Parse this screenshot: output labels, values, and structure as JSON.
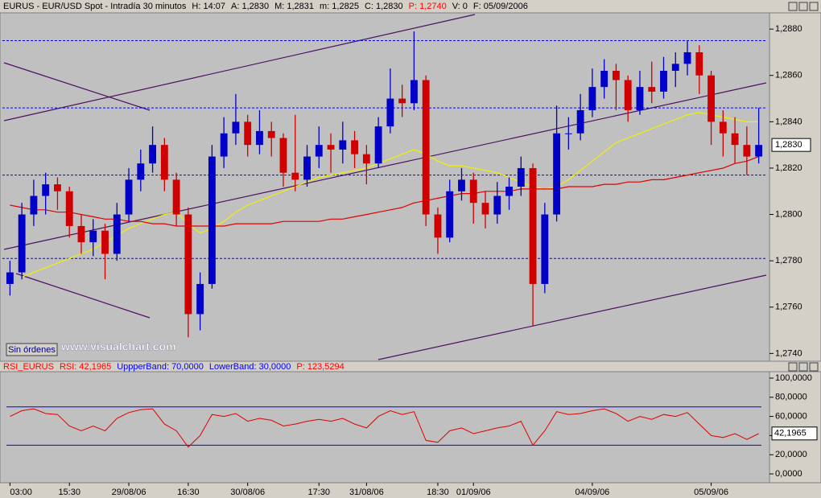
{
  "chart_data": [
    {
      "type": "candlestick",
      "header": [
        {
          "text": "EURUS - EUR/USD Spot - Intradía 30 minutos",
          "color": "#000000"
        },
        {
          "text": "H: 14:07",
          "color": "#000000"
        },
        {
          "text": "A: 1,2830",
          "color": "#000000"
        },
        {
          "text": "M: 1,2831",
          "color": "#000000"
        },
        {
          "text": "m: 1,2825",
          "color": "#000000"
        },
        {
          "text": "C: 1,2830",
          "color": "#000000"
        },
        {
          "text": "P: 1,2740",
          "color": "#ff0000"
        },
        {
          "text": "V: 0",
          "color": "#000000"
        },
        {
          "text": "F: 05/09/2006",
          "color": "#000000"
        }
      ],
      "button": "Sin órdenes",
      "watermark": "www.visualchart.com",
      "categories": [
        "03:00",
        null,
        null,
        null,
        null,
        "15:30",
        null,
        null,
        null,
        null,
        "29/08/06",
        null,
        null,
        null,
        null,
        "16:30",
        null,
        null,
        null,
        null,
        "30/08/06",
        null,
        null,
        null,
        null,
        null,
        "17:30",
        null,
        null,
        null,
        "31/08/06",
        null,
        null,
        null,
        null,
        null,
        "18:30",
        null,
        null,
        "01/09/06",
        null,
        null,
        null,
        null,
        null,
        null,
        null,
        null,
        null,
        "04/09/06",
        null,
        null,
        null,
        null,
        null,
        null,
        null,
        null,
        null,
        "05/09/06",
        null,
        null,
        null,
        null
      ],
      "open": [
        1.277,
        1.2775,
        1.28,
        1.2808,
        1.2813,
        1.281,
        1.2795,
        1.2788,
        1.2793,
        1.2783,
        1.28,
        1.2815,
        1.2822,
        1.283,
        1.2815,
        1.28,
        1.2757,
        1.277,
        1.2825,
        1.2835,
        1.284,
        1.283,
        1.2836,
        1.2833,
        1.2818,
        1.2815,
        1.2825,
        1.283,
        1.2828,
        1.2832,
        1.2826,
        1.2822,
        1.2838,
        1.285,
        1.2848,
        1.2858,
        1.28,
        1.279,
        1.281,
        1.2815,
        1.2805,
        1.28,
        1.2808,
        1.2812,
        1.282,
        1.277,
        1.28,
        1.2835,
        1.2835,
        1.2845,
        1.2855,
        1.2862,
        1.2858,
        1.2845,
        1.2855,
        1.2853,
        1.2862,
        1.2865,
        1.287,
        1.286,
        1.284,
        1.2835,
        1.283,
        1.2825
      ],
      "high": [
        1.278,
        1.2805,
        1.2815,
        1.2818,
        1.2816,
        1.2812,
        1.28,
        1.2798,
        1.2796,
        1.2805,
        1.282,
        1.2828,
        1.2838,
        1.2833,
        1.2818,
        1.2803,
        1.2775,
        1.283,
        1.2842,
        1.2852,
        1.2843,
        1.2845,
        1.284,
        1.2835,
        1.2843,
        1.283,
        1.2838,
        1.2835,
        1.284,
        1.2836,
        1.283,
        1.2842,
        1.2863,
        1.2856,
        1.2879,
        1.286,
        1.2803,
        1.2815,
        1.282,
        1.2818,
        1.281,
        1.2814,
        1.2816,
        1.2825,
        1.2822,
        1.2805,
        1.2847,
        1.2842,
        1.2852,
        1.2863,
        1.2867,
        1.2865,
        1.286,
        1.2862,
        1.2866,
        1.2868,
        1.287,
        1.2875,
        1.2873,
        1.2862,
        1.2845,
        1.2842,
        1.2838,
        1.2846
      ],
      "low": [
        1.2765,
        1.2772,
        1.2795,
        1.28,
        1.2802,
        1.279,
        1.2783,
        1.2782,
        1.2772,
        1.278,
        1.2797,
        1.281,
        1.2818,
        1.281,
        1.2795,
        1.2747,
        1.275,
        1.2768,
        1.282,
        1.283,
        1.2825,
        1.2826,
        1.2825,
        1.2812,
        1.281,
        1.2812,
        1.282,
        1.2818,
        1.2822,
        1.282,
        1.2813,
        1.282,
        1.2835,
        1.2842,
        1.2845,
        1.2795,
        1.2783,
        1.2788,
        1.2806,
        1.2796,
        1.2794,
        1.2796,
        1.2802,
        1.2808,
        1.2752,
        1.2766,
        1.2797,
        1.2828,
        1.2832,
        1.2842,
        1.285,
        1.2845,
        1.284,
        1.2843,
        1.2848,
        1.285,
        1.2855,
        1.286,
        1.2852,
        1.283,
        1.2825,
        1.2822,
        1.2817,
        1.2822
      ],
      "close": [
        1.2775,
        1.28,
        1.2808,
        1.2813,
        1.281,
        1.2795,
        1.2788,
        1.2793,
        1.2783,
        1.28,
        1.2815,
        1.2822,
        1.283,
        1.2815,
        1.28,
        1.2757,
        1.277,
        1.2825,
        1.2835,
        1.284,
        1.283,
        1.2836,
        1.2833,
        1.2818,
        1.2815,
        1.2825,
        1.283,
        1.2828,
        1.2832,
        1.2826,
        1.2822,
        1.2838,
        1.285,
        1.2848,
        1.2858,
        1.28,
        1.279,
        1.281,
        1.2815,
        1.2805,
        1.28,
        1.2808,
        1.2812,
        1.282,
        1.277,
        1.28,
        1.2835,
        1.2835,
        1.2845,
        1.2855,
        1.2862,
        1.2858,
        1.2845,
        1.2855,
        1.2853,
        1.2862,
        1.2865,
        1.287,
        1.286,
        1.284,
        1.2835,
        1.283,
        1.2825,
        1.283
      ],
      "up_color": "#0000c8",
      "down_color": "#d00000",
      "overlays": [
        {
          "color": "#f0f000",
          "values": [
            null,
            1.2773,
            1.2775,
            1.2777,
            1.2779,
            1.2781,
            1.2783,
            1.2785,
            1.2788,
            1.2791,
            1.2794,
            1.2796,
            1.2798,
            1.28,
            1.2801,
            1.2796,
            1.2792,
            1.2794,
            1.2797,
            1.2801,
            1.2804,
            1.2806,
            1.2808,
            1.281,
            1.2812,
            1.2814,
            1.2816,
            1.2817,
            1.2818,
            1.2819,
            1.282,
            1.2822,
            1.2824,
            1.2826,
            1.2828,
            1.2826,
            1.2823,
            1.2821,
            1.2821,
            1.282,
            1.2819,
            1.2818,
            1.2816,
            1.2814,
            1.2812,
            1.2811,
            1.2812,
            1.2815,
            1.2819,
            1.2823,
            1.2827,
            1.2831,
            1.2833,
            1.2835,
            1.2837,
            1.2839,
            1.2841,
            1.2843,
            1.2844,
            1.2843,
            1.2842,
            1.2841,
            1.284,
            1.284
          ]
        },
        {
          "color": "#e00000",
          "values": [
            1.2804,
            1.2803,
            1.2802,
            1.2802,
            1.2801,
            1.2801,
            1.28,
            1.2799,
            1.2798,
            1.2798,
            1.2797,
            1.2797,
            1.2796,
            1.2796,
            1.2795,
            1.2795,
            1.2795,
            1.2795,
            1.2795,
            1.2796,
            1.2796,
            1.2796,
            1.2796,
            1.2797,
            1.2797,
            1.2797,
            1.2797,
            1.2798,
            1.2798,
            1.2799,
            1.28,
            1.2801,
            1.2802,
            1.2803,
            1.2805,
            1.2806,
            1.2807,
            1.2808,
            1.2809,
            1.2809,
            1.281,
            1.281,
            1.281,
            1.2811,
            1.2811,
            1.2811,
            1.2811,
            1.2812,
            1.2812,
            1.2812,
            1.2813,
            1.2813,
            1.2814,
            1.2814,
            1.2815,
            1.2815,
            1.2816,
            1.2817,
            1.2818,
            1.2819,
            1.282,
            1.2822,
            1.2823,
            1.2825
          ]
        }
      ],
      "hlines": [
        1.2875,
        1.2846,
        1.2817,
        1.2781
      ],
      "hline_color": "#0000ff",
      "ylim": [
        1.2737,
        1.2887
      ],
      "yticks": [
        {
          "value": 1.274,
          "label": "1,2740"
        },
        {
          "value": 1.276,
          "label": "1,2760"
        },
        {
          "value": 1.278,
          "label": "1,2780"
        },
        {
          "value": 1.28,
          "label": "1,2800"
        },
        {
          "value": 1.282,
          "label": "1,2820"
        },
        {
          "value": 1.284,
          "label": "1,2840"
        },
        {
          "value": 1.286,
          "label": "1,2860"
        },
        {
          "value": 1.288,
          "label": "1,2880"
        }
      ],
      "last_price": {
        "value": 1.283,
        "label": "1,2830"
      }
    },
    {
      "type": "line",
      "header": [
        {
          "text": "RSI_EURUS",
          "color": "#ff0000"
        },
        {
          "text": "RSI: 42,1965",
          "color": "#ff0000"
        },
        {
          "text": "UppperBand: 70,0000",
          "color": "#0000ff"
        },
        {
          "text": "LowerBand: 30,0000",
          "color": "#0000ff"
        },
        {
          "text": "P: 123,5294",
          "color": "#ff0000"
        }
      ],
      "values": [
        60,
        66,
        68,
        63,
        62,
        50,
        45,
        50,
        45,
        58,
        64,
        67,
        68,
        52,
        45,
        28,
        40,
        62,
        60,
        63,
        55,
        58,
        56,
        50,
        52,
        55,
        57,
        55,
        58,
        52,
        48,
        60,
        66,
        62,
        65,
        35,
        33,
        45,
        48,
        42,
        45,
        48,
        50,
        55,
        30,
        45,
        65,
        62,
        63,
        66,
        68,
        63,
        55,
        60,
        57,
        62,
        60,
        64,
        52,
        40,
        38,
        42,
        36,
        42
      ],
      "color": "#e00000",
      "bands": [
        70,
        30
      ],
      "band_color": "#0000ff",
      "ylim": [
        -9.2,
        106.7
      ],
      "yticks": [
        {
          "value": 0,
          "label": "0,0000"
        },
        {
          "value": 20,
          "label": "20,0000"
        },
        {
          "value": 40,
          "label": "40,0000"
        },
        {
          "value": 60,
          "label": "60,0000"
        },
        {
          "value": 80,
          "label": "80,0000"
        },
        {
          "value": 100,
          "label": "100,0000"
        }
      ],
      "last_value": {
        "value": 42.1965,
        "label": "42,1965"
      }
    }
  ]
}
